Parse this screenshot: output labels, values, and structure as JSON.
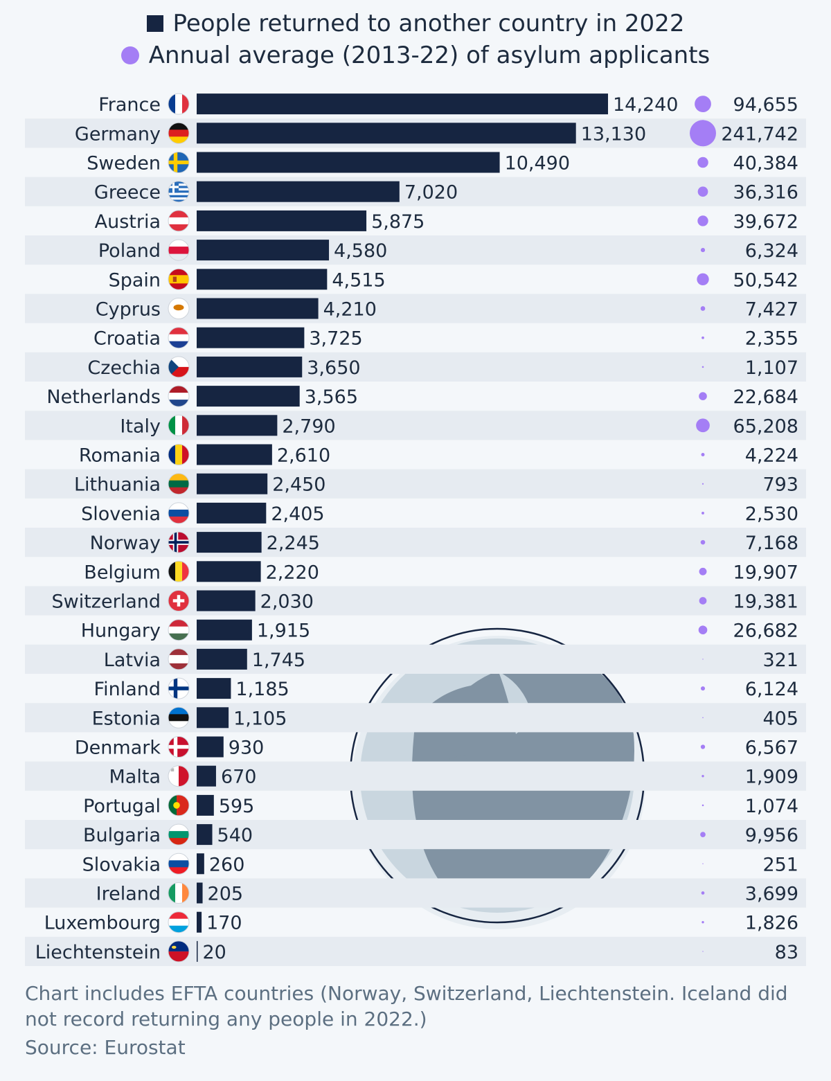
{
  "legend": {
    "returned_label": "People returned to another country in 2022",
    "asylum_label": "Annual average (2013-22) of asylum applicants",
    "returned_color": "#162541",
    "asylum_color": "#a47ef5"
  },
  "chart_data": {
    "type": "bar",
    "orientation": "horizontal",
    "categories": [
      "France",
      "Germany",
      "Sweden",
      "Greece",
      "Austria",
      "Poland",
      "Spain",
      "Cyprus",
      "Croatia",
      "Czechia",
      "Netherlands",
      "Italy",
      "Romania",
      "Lithuania",
      "Slovenia",
      "Norway",
      "Belgium",
      "Switzerland",
      "Hungary",
      "Latvia",
      "Finland",
      "Estonia",
      "Denmark",
      "Malta",
      "Portugal",
      "Bulgaria",
      "Slovakia",
      "Ireland",
      "Luxembourg",
      "Liechtenstein"
    ],
    "series": [
      {
        "name": "People returned to another country in 2022",
        "mark": "bar",
        "values": [
          14240,
          13130,
          10490,
          7020,
          5875,
          4580,
          4515,
          4210,
          3725,
          3650,
          3565,
          2790,
          2610,
          2450,
          2405,
          2245,
          2220,
          2030,
          1915,
          1745,
          1185,
          1105,
          930,
          670,
          595,
          540,
          260,
          205,
          170,
          20
        ],
        "labels": [
          "14,240",
          "13,130",
          "10,490",
          "7,020",
          "5,875",
          "4,580",
          "4,515",
          "4,210",
          "3,725",
          "3,650",
          "3,565",
          "2,790",
          "2,610",
          "2,450",
          "2,405",
          "2,245",
          "2,220",
          "2,030",
          "1,915",
          "1,745",
          "1,185",
          "1,105",
          "930",
          "670",
          "595",
          "540",
          "260",
          "205",
          "170",
          "20"
        ]
      },
      {
        "name": "Annual average (2013-22) of asylum applicants",
        "mark": "bubble",
        "values": [
          94655,
          241742,
          40384,
          36316,
          39672,
          6324,
          50542,
          7427,
          2355,
          1107,
          22684,
          65208,
          4224,
          793,
          2530,
          7168,
          19907,
          19381,
          26682,
          321,
          6124,
          405,
          6567,
          1909,
          1074,
          9956,
          251,
          3699,
          1826,
          83
        ],
        "labels": [
          "94,655",
          "241,742",
          "40,384",
          "36,316",
          "39,672",
          "6,324",
          "50,542",
          "7,427",
          "2,355",
          "1,107",
          "22,684",
          "65,208",
          "4,224",
          "793",
          "2,530",
          "7,168",
          "19,907",
          "19,381",
          "26,682",
          "321",
          "6,124",
          "405",
          "6,567",
          "1,909",
          "1,074",
          "9,956",
          "251",
          "3,699",
          "1,826",
          "83"
        ]
      }
    ],
    "grid": false,
    "legend_position": "top"
  },
  "flags": [
    {
      "type": "v",
      "colors": [
        "#0a3d91",
        "#ffffff",
        "#e0313f"
      ]
    },
    {
      "type": "h",
      "colors": [
        "#111111",
        "#dd1f1f",
        "#ffcc00"
      ]
    },
    {
      "type": "nordic",
      "colors": [
        "#1f66b4",
        "#fecc00"
      ]
    },
    {
      "type": "greece",
      "colors": [
        "#2a6ebb",
        "#ffffff"
      ]
    },
    {
      "type": "h",
      "colors": [
        "#e0313f",
        "#ffffff",
        "#e0313f"
      ]
    },
    {
      "type": "h",
      "colors": [
        "#ffffff",
        "#dc143c"
      ]
    },
    {
      "type": "h3",
      "colors": [
        "#c60b1e",
        "#ffc400",
        "#c60b1e"
      ]
    },
    {
      "type": "solid",
      "colors": [
        "#ffffff",
        "#d57800"
      ]
    },
    {
      "type": "h",
      "colors": [
        "#e0313f",
        "#ffffff",
        "#1b3f94"
      ]
    },
    {
      "type": "czech",
      "colors": [
        "#ffffff",
        "#d7141a",
        "#11457e"
      ]
    },
    {
      "type": "h",
      "colors": [
        "#ae1c28",
        "#ffffff",
        "#21468b"
      ]
    },
    {
      "type": "v",
      "colors": [
        "#009246",
        "#ffffff",
        "#ce2b37"
      ]
    },
    {
      "type": "v",
      "colors": [
        "#002b7f",
        "#fcd116",
        "#ce1126"
      ]
    },
    {
      "type": "h",
      "colors": [
        "#fdb913",
        "#006a44",
        "#c1272d"
      ]
    },
    {
      "type": "h",
      "colors": [
        "#ffffff",
        "#0b4ea2",
        "#e0313f"
      ]
    },
    {
      "type": "nordic",
      "colors": [
        "#ba0c2f",
        "#ffffff",
        "#00205b"
      ]
    },
    {
      "type": "v",
      "colors": [
        "#111111",
        "#fdda24",
        "#ef3340"
      ]
    },
    {
      "type": "swiss",
      "colors": [
        "#e0313f",
        "#ffffff"
      ]
    },
    {
      "type": "h",
      "colors": [
        "#ce2939",
        "#ffffff",
        "#477050"
      ]
    },
    {
      "type": "h3",
      "colors": [
        "#9e3039",
        "#ffffff",
        "#9e3039"
      ]
    },
    {
      "type": "nordic",
      "colors": [
        "#ffffff",
        "#003580"
      ]
    },
    {
      "type": "h",
      "colors": [
        "#0072ce",
        "#111111",
        "#ffffff"
      ]
    },
    {
      "type": "nordic",
      "colors": [
        "#c8102e",
        "#ffffff"
      ]
    },
    {
      "type": "v2",
      "colors": [
        "#ffffff",
        "#cf142b"
      ]
    },
    {
      "type": "v2w",
      "colors": [
        "#046a38",
        "#da291c"
      ]
    },
    {
      "type": "h",
      "colors": [
        "#ffffff",
        "#00966e",
        "#d62612"
      ]
    },
    {
      "type": "h",
      "colors": [
        "#ffffff",
        "#0b4ea2",
        "#ee1c25"
      ]
    },
    {
      "type": "v",
      "colors": [
        "#169b62",
        "#ffffff",
        "#ff883e"
      ]
    },
    {
      "type": "h",
      "colors": [
        "#ed2939",
        "#ffffff",
        "#00a1de"
      ]
    },
    {
      "type": "h2",
      "colors": [
        "#002b7f",
        "#ce1126"
      ]
    }
  ],
  "notes": {
    "note": "Chart includes EFTA countries (Norway, Switzerland, Liechtenstein. Iceland did not record returning any people in 2022.)",
    "source": "Source: Eurostat"
  }
}
